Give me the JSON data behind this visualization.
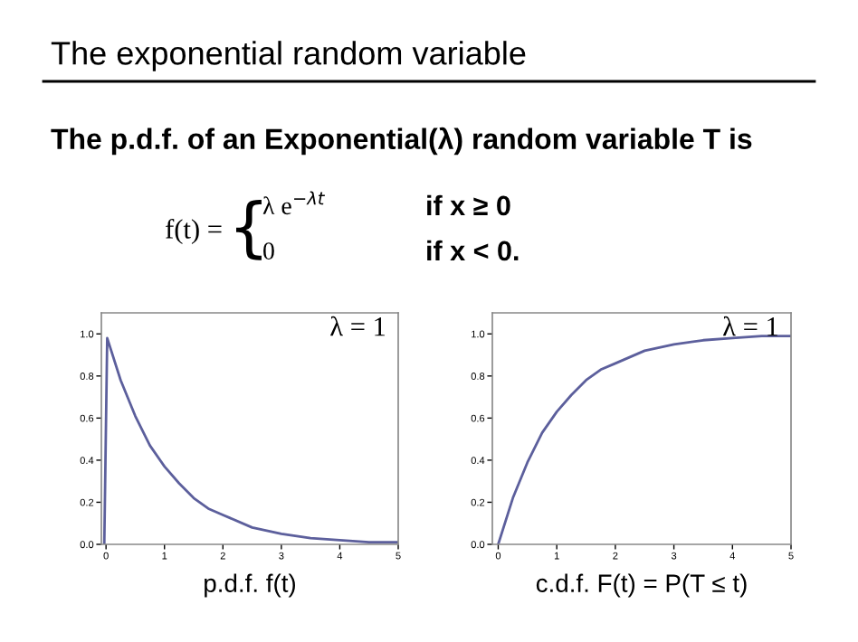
{
  "chart_data": [
    {
      "type": "line",
      "title": "The exponential random variable",
      "subtitle": "The p.d.f. of an Exponential(λ) random variable T is",
      "xlabel": "p.d.f. f(t)",
      "annotations": [
        "f(t) =",
        "{",
        "λ e$^{−λt}$",
        "if x ≥ 0",
        "0",
        "if x < 0.",
        "λ = 1"
      ],
      "series": [
        {
          "color": "#5c5f9c",
          "x": [
            -0.03,
            0.02,
            0.25,
            0.5,
            0.75,
            1.0,
            1.25,
            1.5,
            1.75,
            2.0,
            2.5,
            3.0,
            3.5,
            4.0,
            4.5,
            5.0
          ],
          "values": [
            0.0,
            0.98,
            0.78,
            0.61,
            0.47,
            0.37,
            0.29,
            0.22,
            0.17,
            0.14,
            0.08,
            0.05,
            0.03,
            0.02,
            0.01,
            0.01
          ]
        }
      ],
      "xlim": [
        -0.08,
        5
      ],
      "ylim": [
        0,
        1.1
      ],
      "xticks": [
        0,
        1,
        2,
        3,
        4,
        5
      ],
      "yticks": [
        {
          "value": 0,
          "label": "0.0"
        },
        {
          "value": 0.2,
          "label": "0.2"
        },
        {
          "value": 0.4,
          "label": "0.4"
        },
        {
          "value": 0.6,
          "label": "0.6"
        },
        {
          "value": 0.8,
          "label": "0.8"
        },
        {
          "value": 1.0,
          "label": "1.0"
        }
      ],
      "grid": false,
      "legend": false,
      "marker": "none",
      "line_style": "solid"
    },
    {
      "type": "line",
      "xlabel": "c.d.f. F(t) = P(T ≤ t)",
      "annotations": [
        "λ = 1"
      ],
      "series": [
        {
          "color": "#5c5f9c",
          "x": [
            0,
            0.25,
            0.5,
            0.75,
            1.0,
            1.25,
            1.5,
            1.75,
            2.0,
            2.5,
            3.0,
            3.5,
            4.0,
            4.5,
            5.0
          ],
          "values": [
            0.0,
            0.22,
            0.39,
            0.53,
            0.63,
            0.71,
            0.78,
            0.83,
            0.86,
            0.92,
            0.95,
            0.97,
            0.98,
            0.99,
            0.99
          ]
        }
      ],
      "xlim": [
        -0.1,
        5
      ],
      "ylim": [
        0,
        1.1
      ],
      "xticks": [
        0,
        1,
        2,
        3,
        4,
        5
      ],
      "yticks": [
        {
          "value": 0,
          "label": "0.0"
        },
        {
          "value": 0.2,
          "label": "0.2"
        },
        {
          "value": 0.4,
          "label": "0.4"
        },
        {
          "value": 0.6,
          "label": "0.6"
        },
        {
          "value": 0.8,
          "label": "0.8"
        },
        {
          "value": 1.0,
          "label": "1.0"
        }
      ],
      "grid": false,
      "legend": false,
      "marker": "none",
      "line_style": "solid"
    }
  ]
}
